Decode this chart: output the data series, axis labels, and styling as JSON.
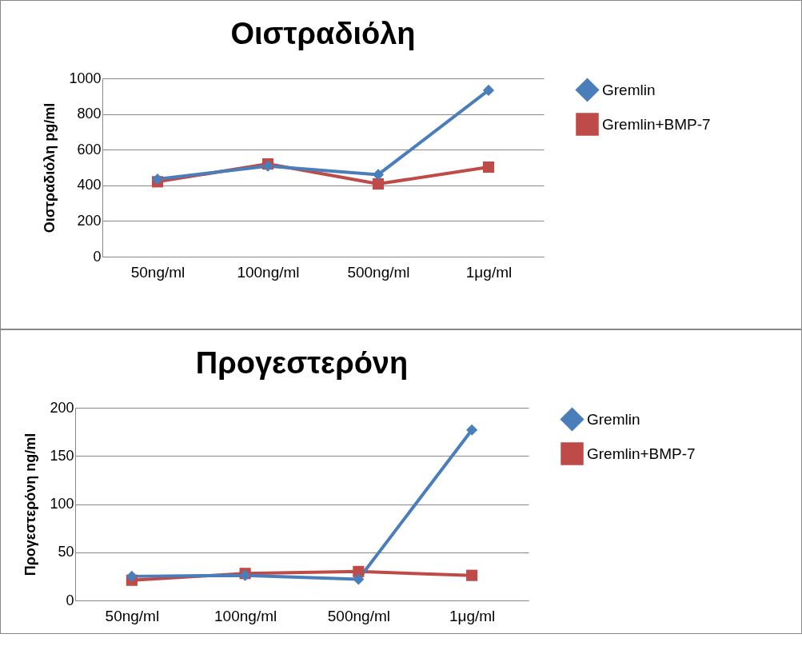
{
  "chart_data": [
    {
      "type": "line",
      "title": "Οιστραδιόλη",
      "ylabel": "Οιστραδιόλη pg/ml",
      "categories": [
        "50ng/ml",
        "100ng/ml",
        "500ng/ml",
        "1μg/ml"
      ],
      "series": [
        {
          "name": "Gremlin",
          "color": "#4a7ebb",
          "marker": "diamond",
          "values": [
            435,
            508,
            460,
            933
          ]
        },
        {
          "name": "Gremlin+BMP-7",
          "color": "#be4b48",
          "marker": "square",
          "values": [
            420,
            520,
            408,
            502
          ]
        }
      ],
      "ylim": [
        0,
        1000
      ],
      "yticks": [
        0,
        200,
        400,
        600,
        800,
        1000
      ],
      "grid": "y",
      "legend": "right"
    },
    {
      "type": "line",
      "title": "Προγεστερόνη",
      "ylabel": "Προγεστερόνη ng/ml",
      "categories": [
        "50ng/ml",
        "100ng/ml",
        "500ng/ml",
        "1μg/ml"
      ],
      "series": [
        {
          "name": "Gremlin",
          "color": "#4a7ebb",
          "marker": "diamond",
          "values": [
            25,
            26,
            22,
            177
          ]
        },
        {
          "name": "Gremlin+BMP-7",
          "color": "#be4b48",
          "marker": "square",
          "values": [
            21,
            28,
            30,
            26
          ]
        }
      ],
      "ylim": [
        0,
        200
      ],
      "yticks": [
        0,
        50,
        100,
        150,
        200
      ],
      "grid": "y",
      "legend": "right"
    }
  ]
}
